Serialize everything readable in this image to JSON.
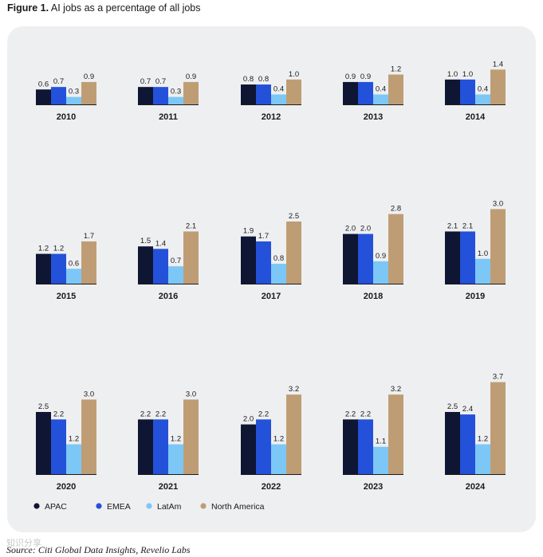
{
  "figure": {
    "label": "Figure 1.",
    "title": "AI jobs as a percentage of all jobs",
    "source": "Source: Citi Global Data Insights, Revelio Labs",
    "watermark": "知识分享"
  },
  "chart_data": {
    "type": "bar",
    "title": "AI jobs as a percentage of all jobs",
    "xlabel": "",
    "ylabel": "",
    "ylim": [
      0,
      4
    ],
    "grid": false,
    "legend_position": "bottom-left",
    "categories": [
      "2010",
      "2011",
      "2012",
      "2013",
      "2014",
      "2015",
      "2016",
      "2017",
      "2018",
      "2019",
      "2020",
      "2021",
      "2022",
      "2023",
      "2024"
    ],
    "series": [
      {
        "name": "APAC",
        "color": "#0f1634",
        "values": [
          0.6,
          0.7,
          0.8,
          0.9,
          1.0,
          1.2,
          1.5,
          1.9,
          2.0,
          2.1,
          2.5,
          2.2,
          2.0,
          2.2,
          2.5
        ],
        "labels": [
          "0.6",
          "0.7",
          "0.8",
          "0.9",
          "1.0",
          "1.2",
          "1.5",
          "1.9",
          "2.0",
          "2.1",
          "2.5",
          "2.2",
          "2.0",
          "2.2",
          "2.5"
        ]
      },
      {
        "name": "EMEA",
        "color": "#2451d9",
        "values": [
          0.7,
          0.7,
          0.8,
          0.9,
          1.0,
          1.2,
          1.4,
          1.7,
          2.0,
          2.1,
          2.2,
          2.2,
          2.2,
          2.2,
          2.4
        ],
        "labels": [
          "0.7",
          "0.7",
          "0.8",
          "0.9",
          "1.0",
          "1.2",
          "1.4",
          "1.7",
          "2.0",
          "2.1",
          "2.2",
          "2.2",
          "2.2",
          "2.2",
          "2.4"
        ]
      },
      {
        "name": "LatAm",
        "color": "#7cc7f5",
        "values": [
          0.3,
          0.3,
          0.4,
          0.4,
          0.4,
          0.6,
          0.7,
          0.8,
          0.9,
          1.0,
          1.2,
          1.2,
          1.2,
          1.1,
          1.2
        ],
        "labels": [
          "0.3",
          "0.3",
          "0.4",
          "0.4",
          "0.4",
          "0.6",
          "0.7",
          "0.8",
          "0.9",
          "1.0",
          "1.2",
          "1.2",
          "1.2",
          "1.1",
          "1.2"
        ]
      },
      {
        "name": "North America",
        "color": "#bf9d74",
        "values": [
          0.9,
          0.9,
          1.0,
          1.2,
          1.4,
          1.7,
          2.1,
          2.5,
          2.8,
          3.0,
          3.0,
          3.0,
          3.2,
          3.2,
          3.7
        ],
        "labels": [
          "0.9",
          "0.9",
          "1.0",
          "1.2",
          "1.4",
          "1.7",
          "2.1",
          "2.5",
          "2.8",
          "3.0",
          "3.0",
          "3.0",
          "3.2",
          "3.2",
          "3.7"
        ]
      }
    ]
  }
}
